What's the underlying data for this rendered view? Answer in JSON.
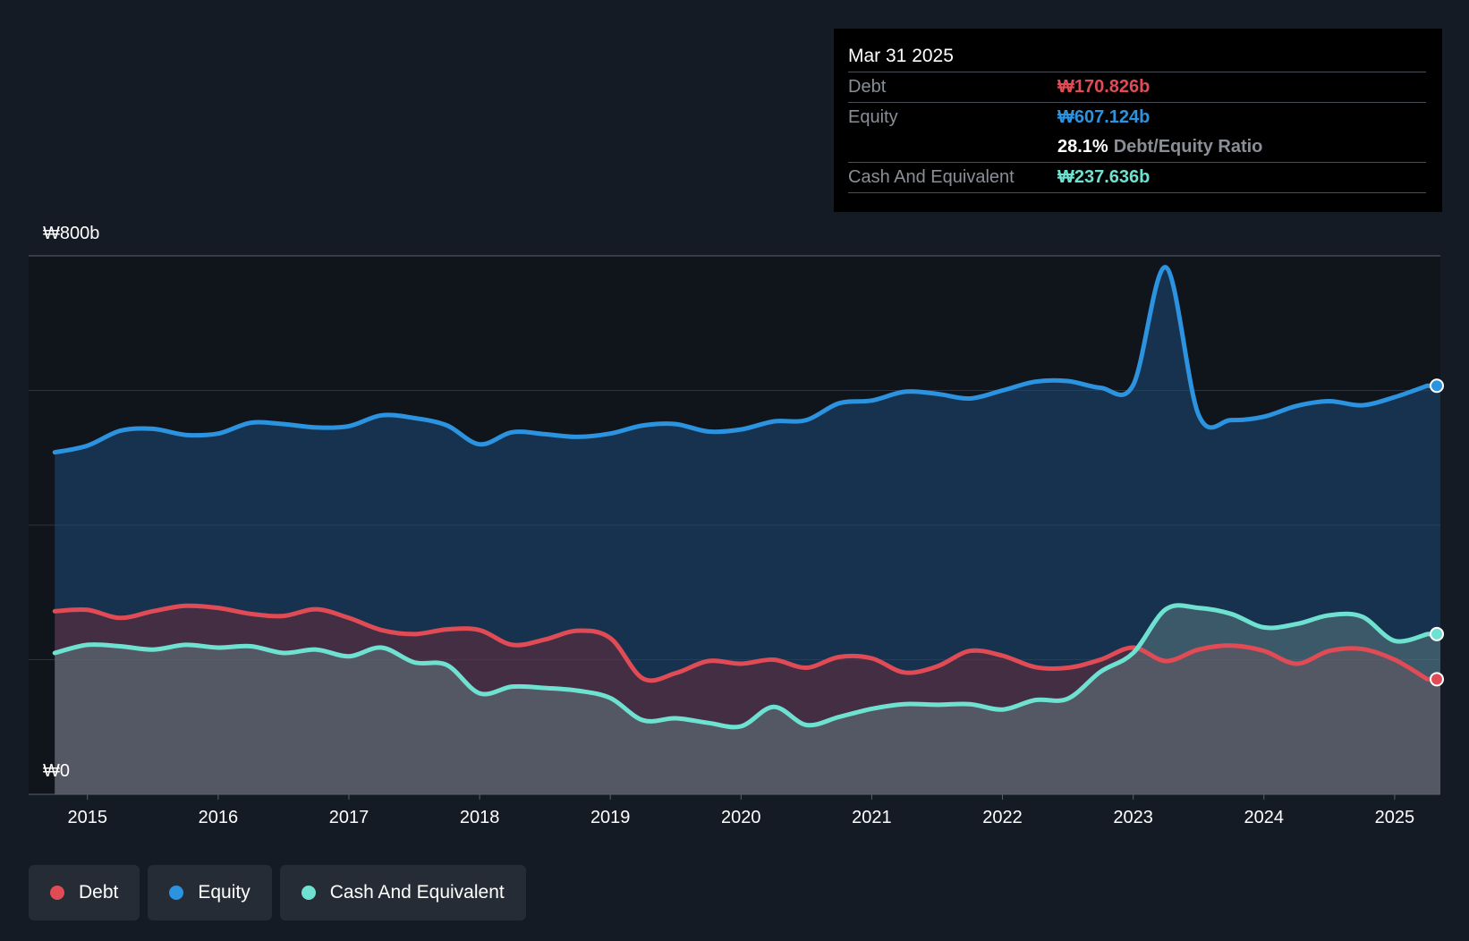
{
  "colors": {
    "debt": "#e04b55",
    "equity": "#2b93df",
    "cash": "#6fe1d0",
    "background": "#151b24",
    "plot_background": "#10151c"
  },
  "tooltip": {
    "date": "Mar 31 2025",
    "debt_label": "Debt",
    "debt_value": "₩170.826b",
    "equity_label": "Equity",
    "equity_value": "₩607.124b",
    "ratio_value": "28.1%",
    "ratio_label": "Debt/Equity Ratio",
    "cash_label": "Cash And Equivalent",
    "cash_value": "₩237.636b"
  },
  "legend": {
    "debt": "Debt",
    "equity": "Equity",
    "cash": "Cash And Equivalent"
  },
  "chart_data": {
    "type": "area",
    "title": "",
    "xlabel": "",
    "ylabel": "",
    "y_unit": "₩ billions",
    "ylim": [
      0,
      800
    ],
    "xlim": [
      2014.55,
      2025.35
    ],
    "y_tick_labels": [
      "₩800b",
      "₩0"
    ],
    "y_tick_values": [
      800,
      0
    ],
    "gridlines_y": [
      200,
      400,
      600,
      800
    ],
    "x_ticks": [
      2015,
      2016,
      2017,
      2018,
      2019,
      2020,
      2021,
      2022,
      2023,
      2024,
      2025
    ],
    "x_tick_labels": [
      "2015",
      "2016",
      "2017",
      "2018",
      "2019",
      "2020",
      "2021",
      "2022",
      "2023",
      "2024",
      "2025"
    ],
    "series": [
      {
        "name": "Equity",
        "x": [
          2014.75,
          2015.0,
          2015.25,
          2015.5,
          2015.75,
          2016.0,
          2016.25,
          2016.5,
          2016.75,
          2017.0,
          2017.25,
          2017.5,
          2017.75,
          2018.0,
          2018.25,
          2018.5,
          2018.75,
          2019.0,
          2019.25,
          2019.5,
          2019.75,
          2020.0,
          2020.25,
          2020.5,
          2020.75,
          2021.0,
          2021.25,
          2021.5,
          2021.75,
          2022.0,
          2022.25,
          2022.5,
          2022.75,
          2023.0,
          2023.25,
          2023.5,
          2023.75,
          2024.0,
          2024.25,
          2024.5,
          2024.75,
          2025.0,
          2025.25
        ],
        "values": [
          508,
          518,
          540,
          543,
          534,
          536,
          552,
          550,
          545,
          547,
          563,
          559,
          548,
          520,
          538,
          535,
          531,
          536,
          548,
          550,
          539,
          542,
          554,
          556,
          581,
          585,
          598,
          595,
          588,
          600,
          613,
          614,
          604,
          608,
          783,
          564,
          556,
          561,
          577,
          584,
          578,
          590,
          607
        ]
      },
      {
        "name": "Debt",
        "x": [
          2014.75,
          2015.0,
          2015.25,
          2015.5,
          2015.75,
          2016.0,
          2016.25,
          2016.5,
          2016.75,
          2017.0,
          2017.25,
          2017.5,
          2017.75,
          2018.0,
          2018.25,
          2018.5,
          2018.75,
          2019.0,
          2019.25,
          2019.5,
          2019.75,
          2020.0,
          2020.25,
          2020.5,
          2020.75,
          2021.0,
          2021.25,
          2021.5,
          2021.75,
          2022.0,
          2022.25,
          2022.5,
          2022.75,
          2023.0,
          2023.25,
          2023.5,
          2023.75,
          2024.0,
          2024.25,
          2024.5,
          2024.75,
          2025.0,
          2025.25
        ],
        "values": [
          272,
          274,
          262,
          272,
          280,
          277,
          268,
          265,
          275,
          262,
          244,
          238,
          245,
          244,
          222,
          230,
          243,
          232,
          172,
          180,
          198,
          194,
          200,
          188,
          204,
          202,
          181,
          190,
          213,
          206,
          189,
          188,
          200,
          218,
          198,
          215,
          221,
          213,
          194,
          213,
          216,
          200,
          171
        ]
      },
      {
        "name": "Cash And Equivalent",
        "x": [
          2014.75,
          2015.0,
          2015.25,
          2015.5,
          2015.75,
          2016.0,
          2016.25,
          2016.5,
          2016.75,
          2017.0,
          2017.25,
          2017.5,
          2017.75,
          2018.0,
          2018.25,
          2018.5,
          2018.75,
          2019.0,
          2019.25,
          2019.5,
          2019.75,
          2020.0,
          2020.25,
          2020.5,
          2020.75,
          2021.0,
          2021.25,
          2021.5,
          2021.75,
          2022.0,
          2022.25,
          2022.5,
          2022.75,
          2023.0,
          2023.25,
          2023.5,
          2023.75,
          2024.0,
          2024.25,
          2024.5,
          2024.75,
          2025.0,
          2025.25
        ],
        "values": [
          210,
          222,
          220,
          215,
          222,
          218,
          220,
          210,
          215,
          205,
          218,
          196,
          192,
          150,
          160,
          158,
          154,
          143,
          110,
          113,
          106,
          101,
          130,
          103,
          115,
          127,
          134,
          133,
          134,
          126,
          140,
          142,
          182,
          210,
          275,
          277,
          268,
          248,
          253,
          266,
          264,
          228,
          238
        ]
      }
    ]
  }
}
